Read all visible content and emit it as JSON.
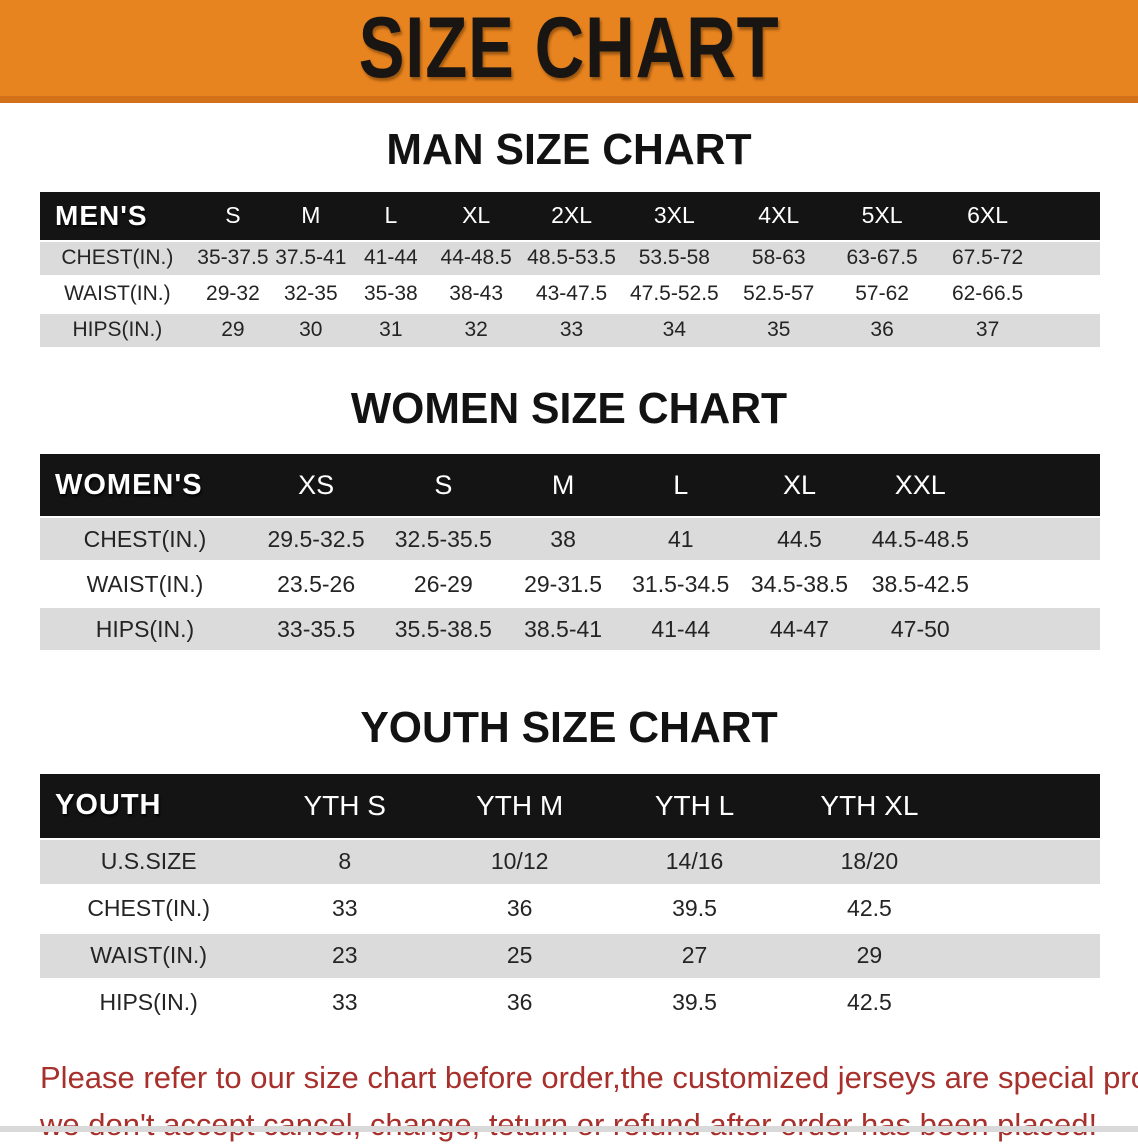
{
  "banner": {
    "title": "SIZE CHART",
    "bg_color": "#E8841F",
    "border_color": "#D2711A",
    "text_color": "#181513"
  },
  "sections": [
    {
      "id": "men",
      "heading": "MAN SIZE CHART",
      "table": {
        "corner_label": "MEN'S",
        "columns": [
          "S",
          "M",
          "L",
          "XL",
          "2XL",
          "3XL",
          "4XL",
          "5XL",
          "6XL"
        ],
        "rows": [
          {
            "label": "CHEST(IN.)",
            "values": [
              "35-37.5",
              "37.5-41",
              "41-44",
              "44-48.5",
              "48.5-53.5",
              "53.5-58",
              "58-63",
              "63-67.5",
              "67.5-72"
            ]
          },
          {
            "label": "WAIST(IN.)",
            "values": [
              "29-32",
              "32-35",
              "35-38",
              "38-43",
              "43-47.5",
              "47.5-52.5",
              "52.5-57",
              "57-62",
              "62-66.5"
            ]
          },
          {
            "label": "HIPS(IN.)",
            "values": [
              "29",
              "30",
              "31",
              "32",
              "33",
              "34",
              "35",
              "36",
              "37"
            ]
          }
        ]
      }
    },
    {
      "id": "women",
      "heading": "WOMEN SIZE CHART",
      "table": {
        "corner_label": "WOMEN'S",
        "columns": [
          "XS",
          "S",
          "M",
          "L",
          "XL",
          "XXL"
        ],
        "rows": [
          {
            "label": "CHEST(IN.)",
            "values": [
              "29.5-32.5",
              "32.5-35.5",
              "38",
              "41",
              "44.5",
              "44.5-48.5"
            ]
          },
          {
            "label": "WAIST(IN.)",
            "values": [
              "23.5-26",
              "26-29",
              "29-31.5",
              "31.5-34.5",
              "34.5-38.5",
              "38.5-42.5"
            ]
          },
          {
            "label": "HIPS(IN.)",
            "values": [
              "33-35.5",
              "35.5-38.5",
              "38.5-41",
              "41-44",
              "44-47",
              "47-50"
            ]
          }
        ]
      }
    },
    {
      "id": "youth",
      "heading": "YOUTH SIZE CHART",
      "table": {
        "corner_label": "YOUTH",
        "columns": [
          "YTH S",
          "YTH M",
          "YTH L",
          "YTH XL"
        ],
        "rows": [
          {
            "label": "U.S.SIZE",
            "values": [
              "8",
              "10/12",
              "14/16",
              "18/20"
            ]
          },
          {
            "label": "CHEST(IN.)",
            "values": [
              "33",
              "36",
              "39.5",
              "42.5"
            ]
          },
          {
            "label": "WAIST(IN.)",
            "values": [
              "23",
              "25",
              "27",
              "29"
            ]
          },
          {
            "label": "HIPS(IN.)",
            "values": [
              "33",
              "36",
              "39.5",
              "42.5"
            ]
          }
        ]
      }
    }
  ],
  "footer": {
    "line1": "Please refer to our size chart before order,the customized jerseys are special products,",
    "line2": "we don't accept cancel, change, teturn or refund after order has been placed!",
    "text_color": "#A8302C"
  }
}
